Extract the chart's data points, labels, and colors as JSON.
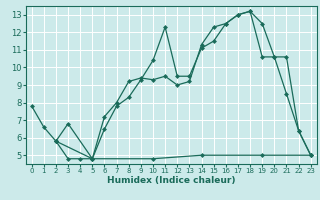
{
  "xlabel": "Humidex (Indice chaleur)",
  "bg_color": "#cceaea",
  "grid_color": "#ffffff",
  "line_color": "#1a6b5a",
  "xlim": [
    -0.5,
    23.5
  ],
  "ylim": [
    4.5,
    13.5
  ],
  "xticks": [
    0,
    1,
    2,
    3,
    4,
    5,
    6,
    7,
    8,
    9,
    10,
    11,
    12,
    13,
    14,
    15,
    16,
    17,
    18,
    19,
    20,
    21,
    22,
    23
  ],
  "yticks": [
    5,
    6,
    7,
    8,
    9,
    10,
    11,
    12,
    13
  ],
  "line1": {
    "x": [
      0,
      1,
      2,
      3,
      4,
      5,
      10,
      14,
      19,
      23
    ],
    "y": [
      7.8,
      6.6,
      5.8,
      4.8,
      4.8,
      4.8,
      4.8,
      5.0,
      5.0,
      5.0
    ]
  },
  "line2": {
    "x": [
      2,
      3,
      5,
      6,
      7,
      8,
      9,
      10,
      11,
      12,
      13,
      14,
      15,
      16,
      17,
      18,
      19,
      20,
      21,
      22,
      23
    ],
    "y": [
      5.8,
      6.8,
      4.8,
      7.2,
      8.0,
      9.2,
      9.4,
      9.3,
      9.5,
      9.0,
      9.2,
      11.3,
      12.3,
      12.5,
      13.0,
      13.2,
      10.6,
      10.6,
      8.5,
      6.4,
      5.0
    ]
  },
  "line3": {
    "x": [
      2,
      5,
      6,
      7,
      8,
      9,
      10,
      11,
      12,
      13,
      14,
      15,
      16,
      17,
      18,
      19,
      20,
      21,
      22,
      23
    ],
    "y": [
      5.8,
      4.8,
      6.5,
      7.8,
      8.3,
      9.3,
      10.4,
      12.3,
      9.5,
      9.5,
      11.1,
      11.5,
      12.5,
      13.0,
      13.2,
      12.5,
      10.6,
      10.6,
      6.4,
      5.0
    ]
  }
}
